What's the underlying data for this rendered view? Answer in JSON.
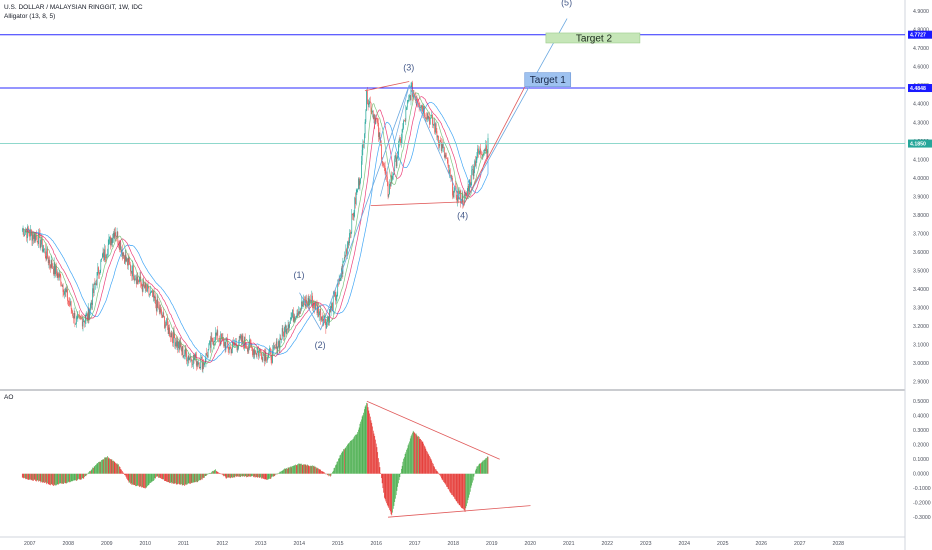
{
  "header": {
    "symbol_title": "U.S. DOLLAR / MALAYSIAN RINGGIT, 1W, IDC",
    "indicator": "Alligator (13, 8, 5)"
  },
  "ao_panel": {
    "label": "AO"
  },
  "price_axis": {
    "ticks": [
      "4.9000",
      "4.8000",
      "4.7000",
      "4.6000",
      "4.5000",
      "4.4000",
      "4.3000",
      "4.2000",
      "4.1000",
      "4.0000",
      "3.9000",
      "3.8000",
      "3.7000",
      "3.6000",
      "3.5000",
      "3.4000",
      "3.3000",
      "3.2000",
      "3.1000",
      "3.0000",
      "2.9000"
    ],
    "badges": [
      {
        "value": "4.7727",
        "color": "#1a1aff"
      },
      {
        "value": "4.4848",
        "color": "#1a1aff"
      },
      {
        "value": "4.1850",
        "color": "#26a69a"
      }
    ]
  },
  "ao_axis": {
    "ticks": [
      "0.5000",
      "0.4000",
      "0.3000",
      "0.2000",
      "0.1000",
      "0.0000",
      "-0.1000",
      "-0.2000",
      "-0.3000"
    ]
  },
  "time_axis": {
    "ticks": [
      "2007",
      "2008",
      "2009",
      "2010",
      "2011",
      "2012",
      "2013",
      "2014",
      "2015",
      "2016",
      "2017",
      "2018",
      "2019",
      "2020",
      "2021",
      "2022",
      "2023",
      "2024",
      "2025",
      "2026",
      "2027",
      "2028"
    ]
  },
  "annotations": {
    "wave_labels": [
      "(1)",
      "(2)",
      "(3)",
      "(4)",
      "(5)"
    ],
    "target1": "Target 1",
    "target2": "Target 2"
  },
  "colors": {
    "up": "#26a69a",
    "down": "#ef5350",
    "ao_up": "#4caf50",
    "ao_down": "#e53935",
    "hline": "#2b2bff",
    "teal_line": "#7fd3c4",
    "jaw": "#2196f3",
    "teeth": "#e91e63",
    "lips": "#66bb6a",
    "trend": "#e05a5a",
    "wave": "#6aa8e0"
  },
  "chart_data": {
    "type": "line",
    "title": "U.S. DOLLAR / MALAYSIAN RINGGIT, 1W, IDC",
    "yscale_price": [
      2.86,
      4.96
    ],
    "yscale_ao": [
      -0.34,
      0.55
    ],
    "price_path": [
      [
        2006.8,
        3.72
      ],
      [
        2007.2,
        3.68
      ],
      [
        2007.5,
        3.55
      ],
      [
        2007.8,
        3.45
      ],
      [
        2008.2,
        3.22
      ],
      [
        2008.5,
        3.25
      ],
      [
        2008.8,
        3.52
      ],
      [
        2009.2,
        3.72
      ],
      [
        2009.5,
        3.55
      ],
      [
        2009.9,
        3.42
      ],
      [
        2010.2,
        3.35
      ],
      [
        2010.6,
        3.18
      ],
      [
        2011.0,
        3.05
      ],
      [
        2011.5,
        3.0
      ],
      [
        2011.8,
        3.15
      ],
      [
        2012.2,
        3.08
      ],
      [
        2012.5,
        3.12
      ],
      [
        2012.9,
        3.06
      ],
      [
        2013.3,
        3.04
      ],
      [
        2013.7,
        3.22
      ],
      [
        2014.0,
        3.3
      ],
      [
        2014.3,
        3.34
      ],
      [
        2014.7,
        3.22
      ],
      [
        2015.0,
        3.4
      ],
      [
        2015.3,
        3.7
      ],
      [
        2015.6,
        4.05
      ],
      [
        2015.75,
        4.45
      ],
      [
        2016.0,
        4.3
      ],
      [
        2016.3,
        3.92
      ],
      [
        2016.6,
        4.18
      ],
      [
        2016.9,
        4.48
      ],
      [
        2017.2,
        4.38
      ],
      [
        2017.5,
        4.28
      ],
      [
        2017.8,
        4.1
      ],
      [
        2018.0,
        3.92
      ],
      [
        2018.3,
        3.88
      ],
      [
        2018.6,
        4.12
      ],
      [
        2018.9,
        4.18
      ]
    ],
    "ao_values": [
      [
        2006.8,
        -0.03
      ],
      [
        2007.2,
        -0.05
      ],
      [
        2007.6,
        -0.08
      ],
      [
        2008.0,
        -0.06
      ],
      [
        2008.4,
        -0.03
      ],
      [
        2008.7,
        0.06
      ],
      [
        2009.0,
        0.12
      ],
      [
        2009.3,
        0.06
      ],
      [
        2009.6,
        -0.07
      ],
      [
        2010.0,
        -0.1
      ],
      [
        2010.3,
        -0.02
      ],
      [
        2010.6,
        -0.06
      ],
      [
        2011.0,
        -0.08
      ],
      [
        2011.4,
        -0.05
      ],
      [
        2011.8,
        0.03
      ],
      [
        2012.1,
        -0.03
      ],
      [
        2012.4,
        -0.02
      ],
      [
        2012.8,
        -0.02
      ],
      [
        2013.2,
        -0.04
      ],
      [
        2013.6,
        0.03
      ],
      [
        2014.0,
        0.07
      ],
      [
        2014.4,
        0.05
      ],
      [
        2014.8,
        -0.02
      ],
      [
        2015.1,
        0.15
      ],
      [
        2015.5,
        0.28
      ],
      [
        2015.75,
        0.5
      ],
      [
        2016.0,
        0.2
      ],
      [
        2016.2,
        -0.16
      ],
      [
        2016.4,
        -0.29
      ],
      [
        2016.7,
        0.1
      ],
      [
        2016.95,
        0.3
      ],
      [
        2017.2,
        0.22
      ],
      [
        2017.5,
        0.05
      ],
      [
        2017.8,
        -0.08
      ],
      [
        2018.1,
        -0.2
      ],
      [
        2018.3,
        -0.26
      ],
      [
        2018.6,
        0.05
      ],
      [
        2018.9,
        0.12
      ]
    ]
  }
}
